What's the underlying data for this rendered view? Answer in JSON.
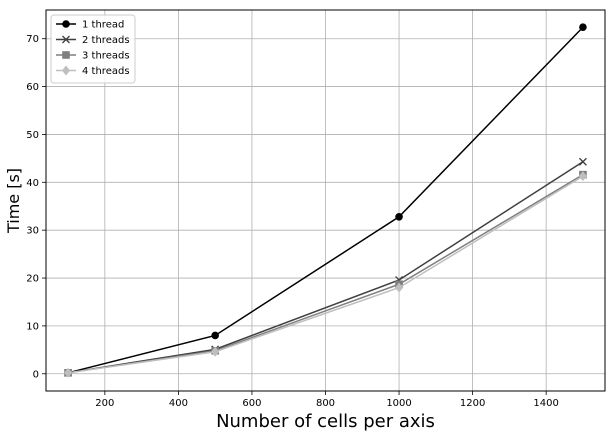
{
  "chart_data": {
    "type": "line",
    "title": "",
    "xlabel": "Number of cells per axis",
    "ylabel": "Time [s]",
    "xlim": [
      40,
      1560
    ],
    "ylim": [
      -3.6,
      76.0
    ],
    "xticks": [
      200,
      400,
      600,
      800,
      1000,
      1200,
      1400
    ],
    "yticks": [
      0,
      10,
      20,
      30,
      40,
      50,
      60,
      70
    ],
    "grid": true,
    "legend_position": "top-left",
    "series": [
      {
        "name": "1 thread",
        "color": "#000000",
        "marker": "circle",
        "x": [
          100,
          500,
          1000,
          1500
        ],
        "values": [
          0.2,
          8.0,
          32.8,
          72.4
        ]
      },
      {
        "name": "2 threads",
        "color": "#3f3f3f",
        "marker": "x",
        "x": [
          100,
          500,
          1000,
          1500
        ],
        "values": [
          0.2,
          5.1,
          19.6,
          44.3
        ]
      },
      {
        "name": "3 threads",
        "color": "#7f7f7f",
        "marker": "square",
        "x": [
          100,
          500,
          1000,
          1500
        ],
        "values": [
          0.2,
          4.8,
          18.7,
          41.6
        ]
      },
      {
        "name": "4 threads",
        "color": "#bfbfbf",
        "marker": "diamond",
        "x": [
          100,
          500,
          1000,
          1500
        ],
        "values": [
          0.2,
          4.6,
          18.0,
          41.3
        ]
      }
    ]
  }
}
